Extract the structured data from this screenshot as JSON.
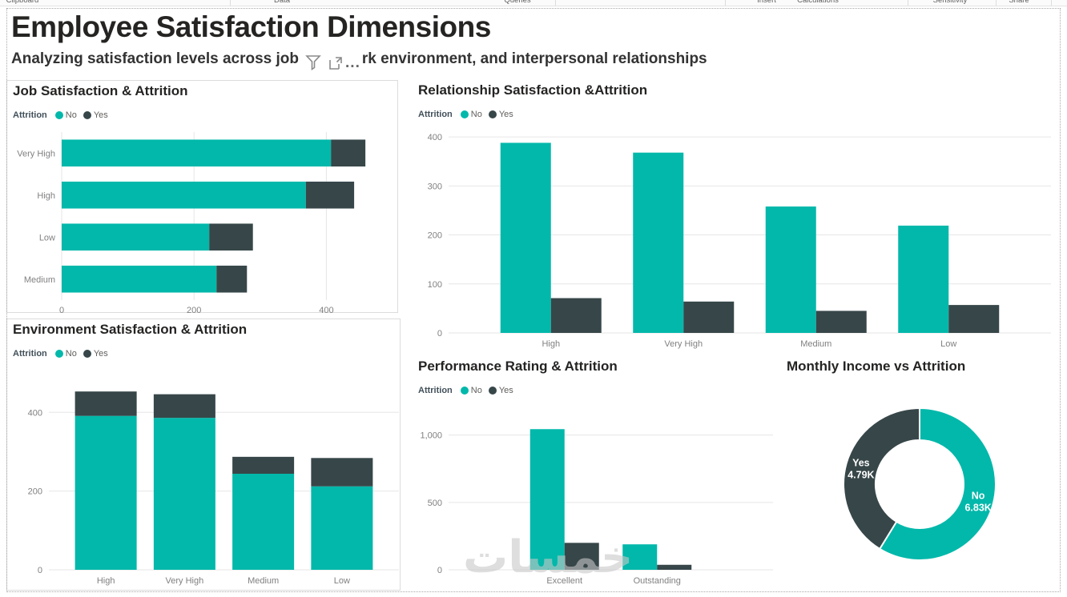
{
  "ribbon": {
    "groups": [
      "Clipboard",
      "Data",
      "Queries",
      "Insert",
      "Calculations",
      "Sensitivity",
      "Share"
    ]
  },
  "header": {
    "title": "Employee Satisfaction Dimensions",
    "subtitle_left": "Analyzing satisfaction levels across job",
    "subtitle_right": "rk environment, and interpersonal relationships",
    "more_options": "...",
    "hover_icons": [
      "filter-icon",
      "focus-mode-icon",
      "more-options-icon"
    ]
  },
  "legend": {
    "title": "Attrition",
    "items": [
      {
        "label": "No",
        "color": "#01B8AA"
      },
      {
        "label": "Yes",
        "color": "#374649"
      }
    ]
  },
  "colors": {
    "teal": "#01B8AA",
    "dark": "#374649",
    "title_text": "#252423",
    "axis_text": "#808080",
    "grid": "#e6e6e6",
    "panel_border": "#dcdcdc",
    "watermark": "#c9c9c9"
  },
  "watermark": {
    "text": "خمسات"
  },
  "chart_data": [
    {
      "id": "job",
      "type": "bar",
      "orientation": "horizontal",
      "stacked": true,
      "title": "Job Satisfaction & Attrition",
      "legend_shown": true,
      "categories": [
        "Very High",
        "High",
        "Low",
        "Medium"
      ],
      "series": [
        {
          "name": "No",
          "values": [
            407,
            369,
            223,
            234
          ]
        },
        {
          "name": "Yes",
          "values": [
            52,
            73,
            66,
            46
          ]
        }
      ],
      "x_ticks": [
        0,
        200,
        400
      ],
      "xlim": [
        0,
        500
      ]
    },
    {
      "id": "relationship",
      "type": "bar",
      "orientation": "vertical",
      "stacked": false,
      "title": "Relationship Satisfaction &Attrition",
      "legend_shown": true,
      "categories": [
        "High",
        "Very High",
        "Medium",
        "Low"
      ],
      "series": [
        {
          "name": "No",
          "values": [
            388,
            368,
            258,
            219
          ]
        },
        {
          "name": "Yes",
          "values": [
            71,
            64,
            45,
            57
          ]
        }
      ],
      "y_ticks": [
        0,
        100,
        200,
        300,
        400
      ],
      "ylim": [
        0,
        410
      ]
    },
    {
      "id": "environment",
      "type": "bar",
      "orientation": "vertical",
      "stacked": true,
      "title": "Environment Satisfaction & Attrition",
      "legend_shown": true,
      "categories": [
        "High",
        "Very High",
        "Medium",
        "Low"
      ],
      "series": [
        {
          "name": "No",
          "values": [
            391,
            386,
            244,
            212
          ]
        },
        {
          "name": "Yes",
          "values": [
            62,
            60,
            43,
            72
          ]
        }
      ],
      "y_ticks": [
        0,
        200,
        400
      ],
      "ylim": [
        0,
        490
      ]
    },
    {
      "id": "performance",
      "type": "bar",
      "orientation": "vertical",
      "stacked": false,
      "title": "Performance Rating & Attrition",
      "legend_shown": true,
      "categories": [
        "Excellent",
        "Outstanding"
      ],
      "series": [
        {
          "name": "No",
          "values": [
            1044,
            189
          ]
        },
        {
          "name": "Yes",
          "values": [
            200,
            37
          ]
        }
      ],
      "y_ticks": [
        0,
        500,
        1000
      ],
      "ylim": [
        0,
        1200
      ]
    },
    {
      "id": "income",
      "type": "donut",
      "title": "Monthly Income vs Attrition",
      "legend_shown": false,
      "slices": [
        {
          "label": "No",
          "value": 6830,
          "display": "6.83K"
        },
        {
          "label": "Yes",
          "value": 4790,
          "display": "4.79K"
        }
      ]
    }
  ]
}
